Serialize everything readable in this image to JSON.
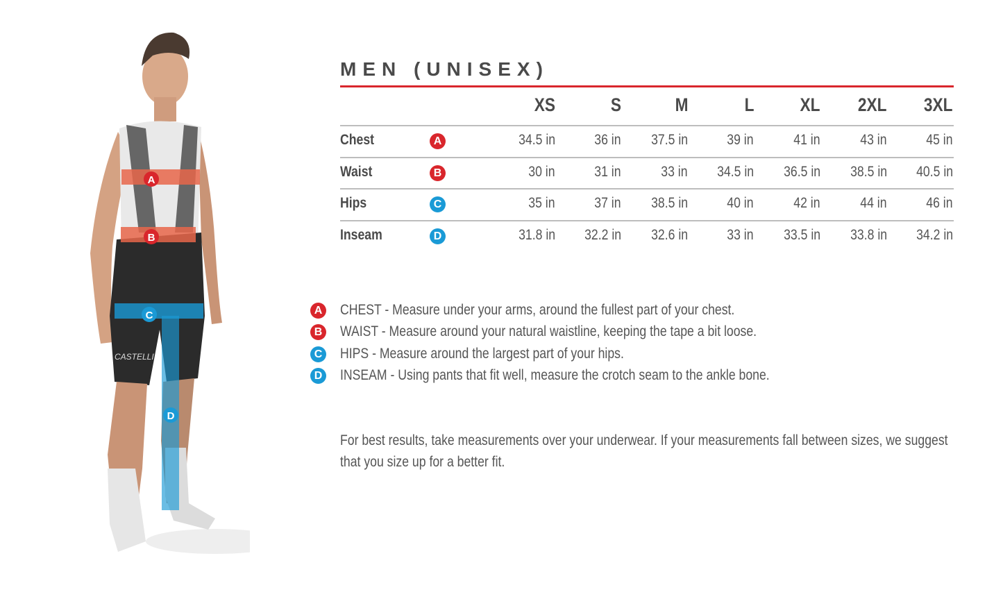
{
  "title": "MEN (UNISEX)",
  "colors": {
    "accent_red": "#d9262c",
    "accent_blue": "#1a9ad6",
    "text": "#555555"
  },
  "sizes": [
    "XS",
    "S",
    "M",
    "L",
    "XL",
    "2XL",
    "3XL"
  ],
  "rows": [
    {
      "label": "Chest",
      "badge": "A",
      "badge_color": "#d9262c",
      "values": [
        "34.5 in",
        "36 in",
        "37.5 in",
        "39 in",
        "41 in",
        "43 in",
        "45 in"
      ]
    },
    {
      "label": "Waist",
      "badge": "B",
      "badge_color": "#d9262c",
      "values": [
        "30 in",
        "31 in",
        "33 in",
        "34.5 in",
        "36.5 in",
        "38.5 in",
        "40.5 in"
      ]
    },
    {
      "label": "Hips",
      "badge": "C",
      "badge_color": "#1a9ad6",
      "values": [
        "35 in",
        "37 in",
        "38.5 in",
        "40 in",
        "42 in",
        "44 in",
        "46 in"
      ]
    },
    {
      "label": "Inseam",
      "badge": "D",
      "badge_color": "#1a9ad6",
      "values": [
        "31.8 in",
        "32.2 in",
        "32.6 in",
        "33 in",
        "33.5 in",
        "33.8 in",
        "34.2 in"
      ]
    }
  ],
  "legend": [
    {
      "badge": "A",
      "badge_color": "#d9262c",
      "text": "CHEST - Measure under your arms, around the fullest part of your chest."
    },
    {
      "badge": "B",
      "badge_color": "#d9262c",
      "text": "WAIST - Measure around your natural waistline, keeping the tape a bit loose."
    },
    {
      "badge": "C",
      "badge_color": "#1a9ad6",
      "text": "HIPS - Measure around the largest part of your hips."
    },
    {
      "badge": "D",
      "badge_color": "#1a9ad6",
      "text": "INSEAM - Using pants that fit well, measure the crotch seam to the ankle bone."
    }
  ],
  "note": [
    "For best results, take measurements over your underwear. If your measurements fall between sizes, we suggest",
    "that you size up for a better fit."
  ],
  "figure": {
    "badges": [
      "A",
      "B",
      "C",
      "D"
    ],
    "shorts_logo": "CASTELLI"
  }
}
